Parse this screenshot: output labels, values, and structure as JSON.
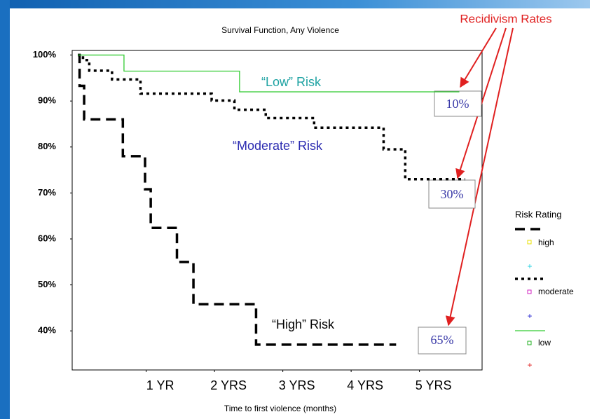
{
  "chart_data": {
    "type": "step",
    "title": "Survival Function, Any Violence",
    "x_label": "Time to first violence (months)",
    "xlim": [
      -1,
      71
    ],
    "xticks": [
      {
        "value": 12,
        "label": "1 YR"
      },
      {
        "value": 24,
        "label": "2 YRS"
      },
      {
        "value": 36,
        "label": "3 YRS"
      },
      {
        "value": 48,
        "label": "4 YRS"
      },
      {
        "value": 60,
        "label": "5 YRS"
      }
    ],
    "ylim": [
      31.5,
      101
    ],
    "yticks": [
      {
        "value": 40,
        "label": "40%"
      },
      {
        "value": 50,
        "label": "50%"
      },
      {
        "value": 60,
        "label": "60%"
      },
      {
        "value": 70,
        "label": "70%"
      },
      {
        "value": 80,
        "label": "80%"
      },
      {
        "value": 90,
        "label": "90%"
      },
      {
        "value": 100,
        "label": "100%"
      }
    ],
    "legend_title": "Risk Rating",
    "series": [
      {
        "name": "high",
        "color": "#000000",
        "line_style": "dashed",
        "x": [
          0,
          0.3,
          1.1,
          7.9,
          11.8,
          12.8,
          17.4,
          20.3,
          31.3,
          55.9
        ],
        "values": [
          100,
          93.3,
          86,
          78,
          70.8,
          62.4,
          55,
          45.8,
          37,
          37
        ]
      },
      {
        "name": "moderate",
        "color": "#000000",
        "line_style": "dotted",
        "x": [
          0,
          0.9,
          2,
          6,
          11,
          23.5,
          27.5,
          33,
          41.5,
          53.7,
          57.5,
          68
        ],
        "values": [
          100,
          98.9,
          96.6,
          94.7,
          91.6,
          90.1,
          88.1,
          86.3,
          84.2,
          79.5,
          73,
          73
        ]
      },
      {
        "name": "low",
        "color": "#33cc33",
        "line_style": "solid",
        "x": [
          0,
          8.1,
          28.4,
          67
        ],
        "values": [
          100,
          96.5,
          92,
          92
        ]
      }
    ],
    "annotations": [
      "“Low” Risk",
      "“Moderate” Risk",
      "“High” Risk"
    ],
    "recidivism": {
      "title": "Recidivism Rates",
      "labels": [
        "10%",
        "30%",
        "65%"
      ]
    }
  }
}
